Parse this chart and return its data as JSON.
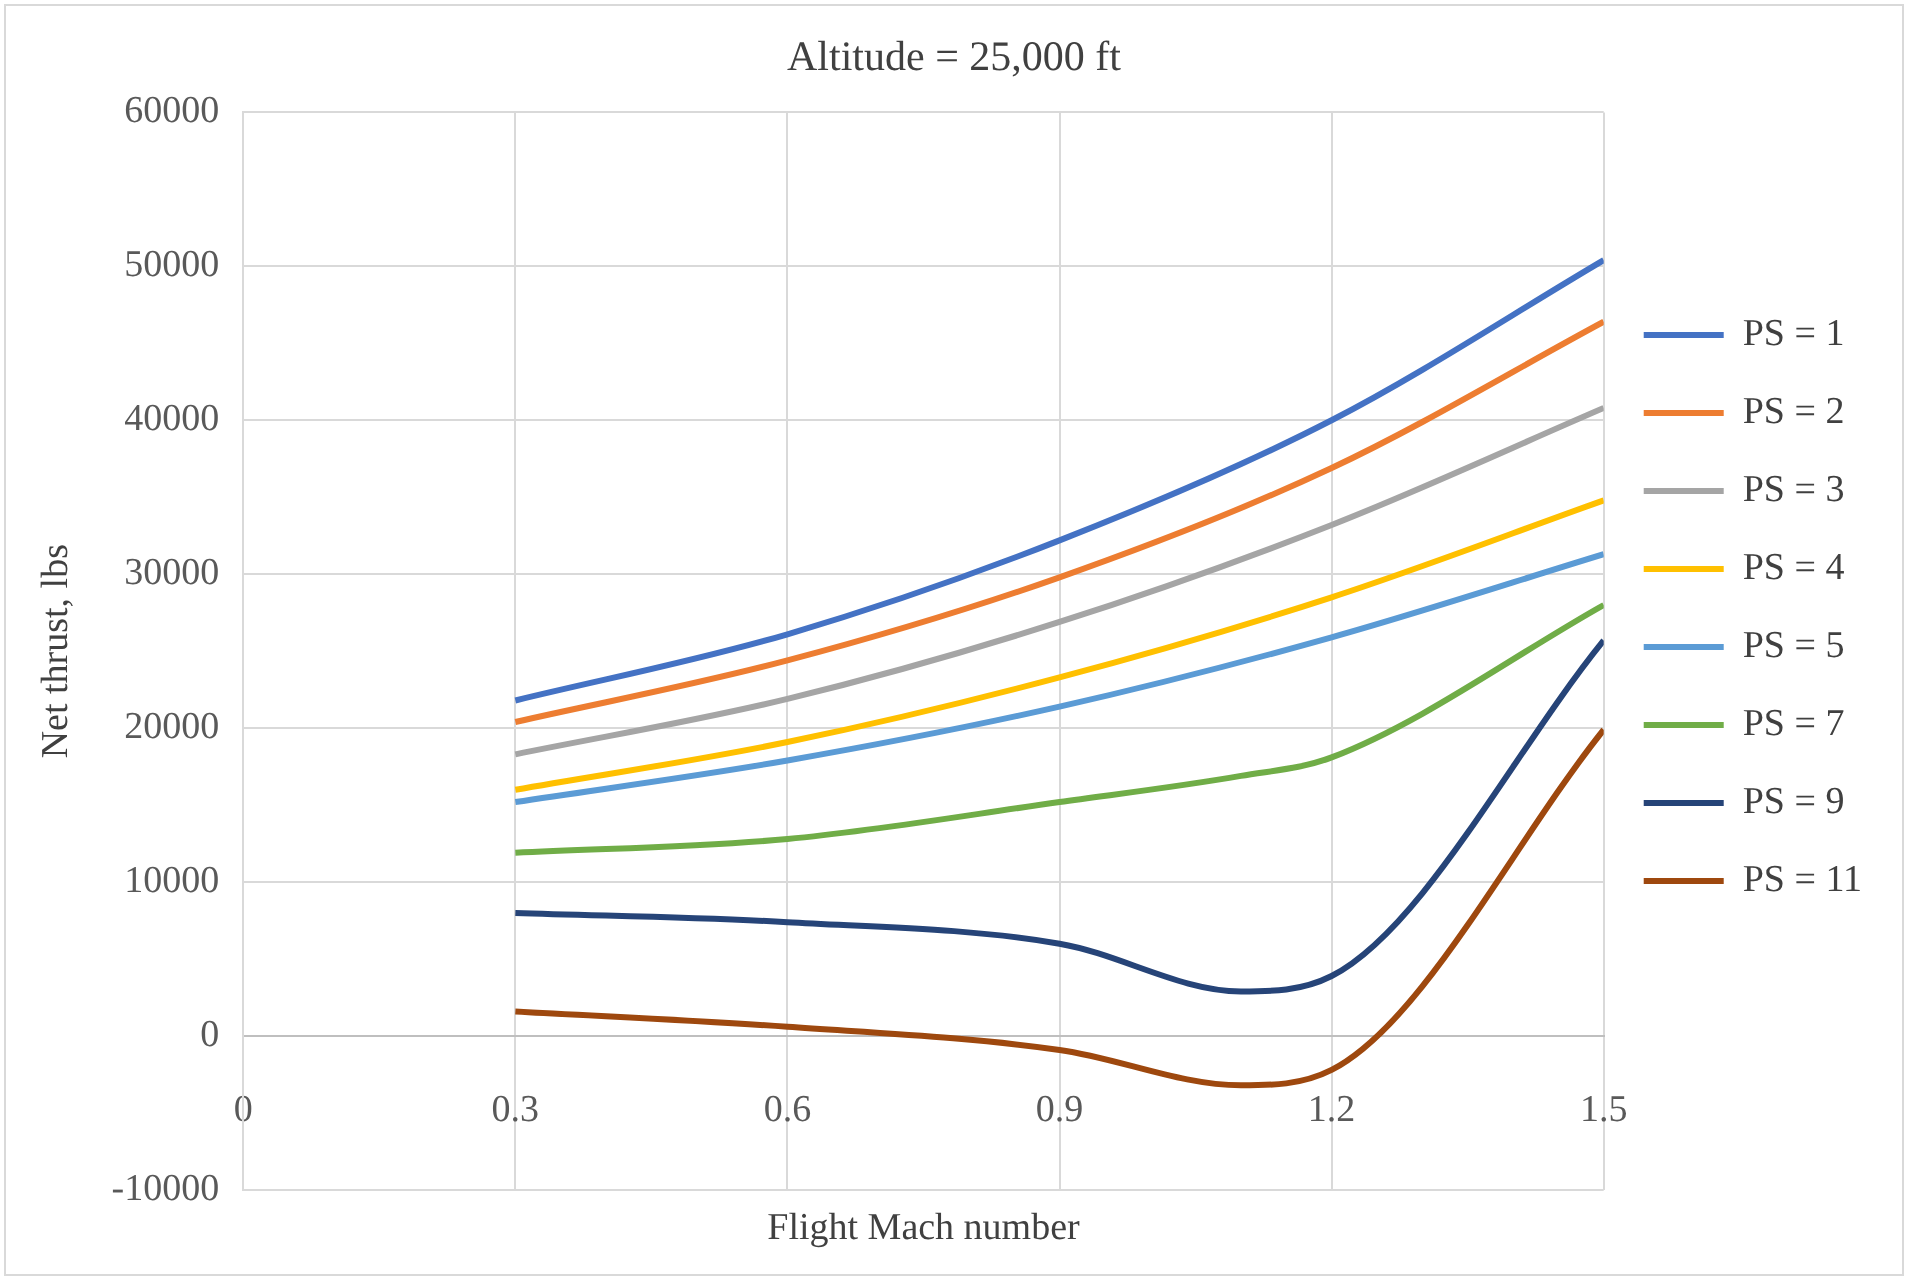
{
  "chart_data": {
    "type": "line",
    "title": "Altitude = 25,000 ft",
    "xlabel": "Flight Mach number",
    "ylabel": "Net thrust, lbs",
    "xlim": [
      0,
      1.5
    ],
    "xticks": [
      0,
      0.3,
      0.6,
      0.9,
      1.2,
      1.5
    ],
    "ylim": [
      -10000,
      60000
    ],
    "yticks": [
      -10000,
      0,
      10000,
      20000,
      30000,
      40000,
      50000,
      60000
    ],
    "grid": true,
    "legend": "right",
    "marker": "none",
    "series": [
      {
        "name": "PS = 1",
        "color": "#4472c4",
        "x": [
          0.3,
          0.6,
          0.9,
          1.2,
          1.5
        ],
        "values": [
          21800,
          26100,
          32200,
          40000,
          50400
        ]
      },
      {
        "name": "PS = 2",
        "color": "#ed7d31",
        "x": [
          0.3,
          0.6,
          0.9,
          1.2,
          1.5
        ],
        "values": [
          20400,
          24400,
          29800,
          36900,
          46400
        ]
      },
      {
        "name": "PS = 3",
        "color": "#a5a5a5",
        "x": [
          0.3,
          0.6,
          0.9,
          1.2,
          1.5
        ],
        "values": [
          18300,
          21900,
          26900,
          33200,
          40800
        ]
      },
      {
        "name": "PS = 4",
        "color": "#ffc000",
        "x": [
          0.3,
          0.6,
          0.9,
          1.2,
          1.5
        ],
        "values": [
          16000,
          19100,
          23300,
          28500,
          34800
        ]
      },
      {
        "name": "PS = 5",
        "color": "#5b9bd5",
        "x": [
          0.3,
          0.6,
          0.9,
          1.2,
          1.5
        ],
        "values": [
          15200,
          17900,
          21400,
          25900,
          31300
        ]
      },
      {
        "name": "PS = 7",
        "color": "#70ad47",
        "x": [
          0.3,
          0.6,
          0.9,
          1.1,
          1.2,
          1.5
        ],
        "values": [
          11900,
          12800,
          15200,
          16900,
          18100,
          28000
        ]
      },
      {
        "name": "PS = 9",
        "color": "#264478",
        "x": [
          0.3,
          0.6,
          0.9,
          1.1,
          1.2,
          1.5
        ],
        "values": [
          8000,
          7400,
          6000,
          2900,
          3900,
          25700
        ]
      },
      {
        "name": "PS = 11",
        "color": "#9e480e",
        "x": [
          0.3,
          0.6,
          0.9,
          1.1,
          1.2,
          1.5
        ],
        "values": [
          1600,
          600,
          -900,
          -3200,
          -2200,
          19900
        ]
      }
    ]
  }
}
